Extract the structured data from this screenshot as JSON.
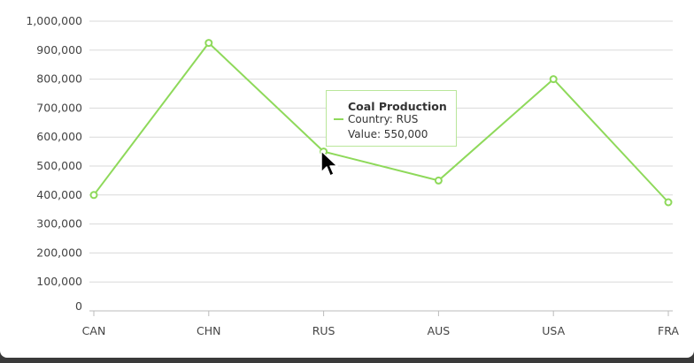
{
  "chart_data": {
    "type": "line",
    "categories": [
      "CAN",
      "CHN",
      "RUS",
      "AUS",
      "USA",
      "FRA"
    ],
    "series": [
      {
        "name": "Coal Production",
        "values": [
          400000,
          925000,
          550000,
          450000,
          800000,
          375000
        ]
      }
    ],
    "ylim": [
      0,
      1000000
    ],
    "y_ticks": [
      "0",
      "100,000",
      "200,000",
      "300,000",
      "400,000",
      "500,000",
      "600,000",
      "700,000",
      "800,000",
      "900,000",
      "1,000,000"
    ],
    "grid": true,
    "color": "#8ed95a"
  },
  "tooltip": {
    "title": "Coal Production",
    "country_line": "Country: RUS",
    "value_line": "Value: 550,000"
  },
  "cursor_icon": "arrow-cursor-icon"
}
